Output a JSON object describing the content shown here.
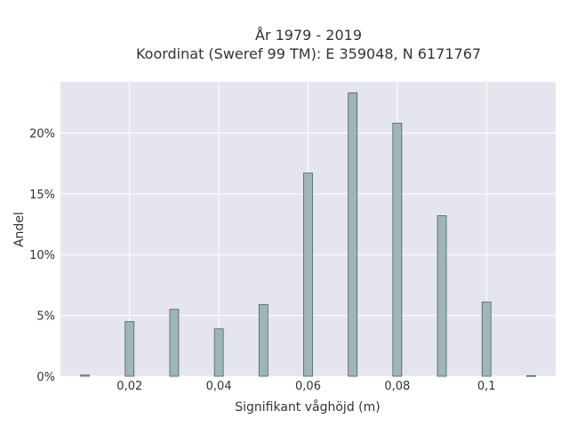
{
  "chart_data": {
    "type": "bar",
    "title_lines": [
      "År 1979 - 2019",
      "Koordinat (Sweref 99 TM): E 359048, N 6171767"
    ],
    "xlabel": "Signifikant våghöjd (m)",
    "ylabel": "Andel",
    "x": [
      0.01,
      0.02,
      0.03,
      0.04,
      0.05,
      0.06,
      0.07,
      0.08,
      0.09,
      0.1,
      0.11
    ],
    "values": [
      0.1,
      4.5,
      5.5,
      3.9,
      5.9,
      16.7,
      23.3,
      20.8,
      13.2,
      6.1,
      0.05
    ],
    "xlim": [
      0.0045,
      0.1155
    ],
    "ylim": [
      0,
      24.2
    ],
    "x_ticks": [
      {
        "value": 0.02,
        "label": "0,02"
      },
      {
        "value": 0.04,
        "label": "0,04"
      },
      {
        "value": 0.06,
        "label": "0,06"
      },
      {
        "value": 0.08,
        "label": "0,08"
      },
      {
        "value": 0.1,
        "label": "0,1"
      }
    ],
    "y_ticks": [
      {
        "value": 0,
        "label": "0%"
      },
      {
        "value": 5,
        "label": "5%"
      },
      {
        "value": 10,
        "label": "10%"
      },
      {
        "value": 15,
        "label": "15%"
      },
      {
        "value": 20,
        "label": "20%"
      }
    ],
    "grid": true,
    "colors": {
      "plot_bg": "#e5e5ef",
      "grid": "#ffffff",
      "bar_fill": "#9fb6b6",
      "bar_stroke": "#4f5f5f"
    }
  }
}
